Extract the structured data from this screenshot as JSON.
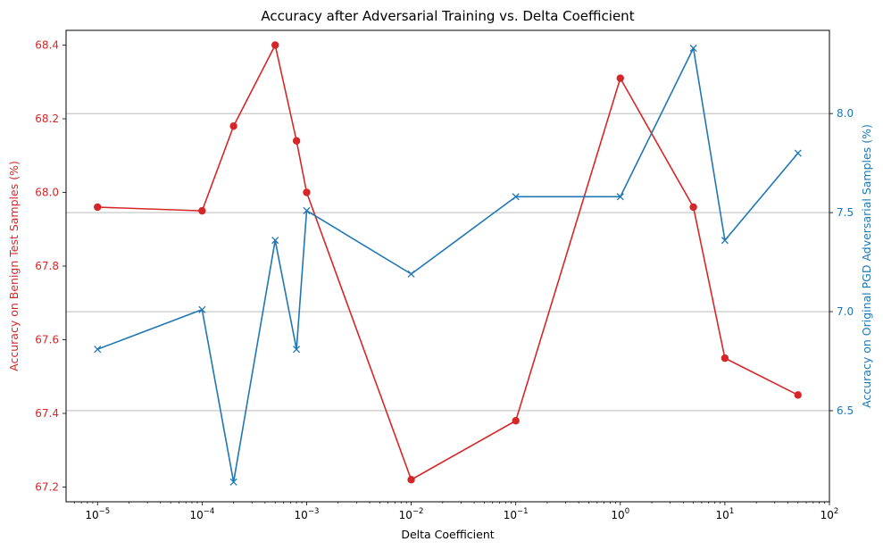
{
  "chart_data": {
    "type": "line",
    "title": "Accuracy after Adversarial Training vs. Delta Coefficient",
    "xlabel": "Delta Coefficient",
    "x_scale": "log",
    "xlim": [
      5e-06,
      100
    ],
    "x_ticks": [
      {
        "value": 1e-05,
        "base": "10",
        "exp": "−5"
      },
      {
        "value": 0.0001,
        "base": "10",
        "exp": "−4"
      },
      {
        "value": 0.001,
        "base": "10",
        "exp": "−3"
      },
      {
        "value": 0.01,
        "base": "10",
        "exp": "−2"
      },
      {
        "value": 0.1,
        "base": "10",
        "exp": "−1"
      },
      {
        "value": 1,
        "base": "10",
        "exp": "0"
      },
      {
        "value": 10,
        "base": "10",
        "exp": "1"
      },
      {
        "value": 100,
        "base": "10",
        "exp": "2"
      }
    ],
    "grid": "horizontal lines at right-axis ticks",
    "left_axis": {
      "label": "Accuracy on Benign Test Samples (%)",
      "color": "#d62728",
      "ylim": [
        67.16,
        68.44
      ],
      "ticks": [
        67.2,
        67.4,
        67.6,
        67.8,
        68.0,
        68.2,
        68.4
      ],
      "tick_labels": [
        "67.2",
        "67.4",
        "67.6",
        "67.8",
        "68.0",
        "68.2",
        "68.4"
      ]
    },
    "right_axis": {
      "label": "Accuracy on Original PGD Adversarial Samples (%)",
      "color": "#1f77b4",
      "ylim": [
        6.04,
        8.42
      ],
      "ticks": [
        6.5,
        7.0,
        7.5,
        8.0
      ],
      "tick_labels": [
        "6.5",
        "7.0",
        "7.5",
        "8.0"
      ]
    },
    "series": [
      {
        "axis": "left",
        "color": "#d62728",
        "marker": "circle",
        "x": [
          1e-05,
          0.0001,
          0.0002,
          0.0005,
          0.0008,
          0.001,
          0.01,
          0.1,
          1,
          5,
          10,
          50
        ],
        "y": [
          67.96,
          67.95,
          68.18,
          68.4,
          68.14,
          68.0,
          67.22,
          67.38,
          68.31,
          67.96,
          67.55,
          67.45
        ]
      },
      {
        "axis": "right",
        "color": "#1f77b4",
        "marker": "x",
        "x": [
          1e-05,
          0.0001,
          0.0002,
          0.0005,
          0.0008,
          0.001,
          0.01,
          0.1,
          1,
          5,
          10,
          50
        ],
        "y": [
          6.81,
          7.01,
          6.14,
          7.36,
          6.81,
          7.51,
          7.19,
          7.58,
          7.58,
          8.33,
          7.36,
          7.8
        ]
      }
    ]
  }
}
